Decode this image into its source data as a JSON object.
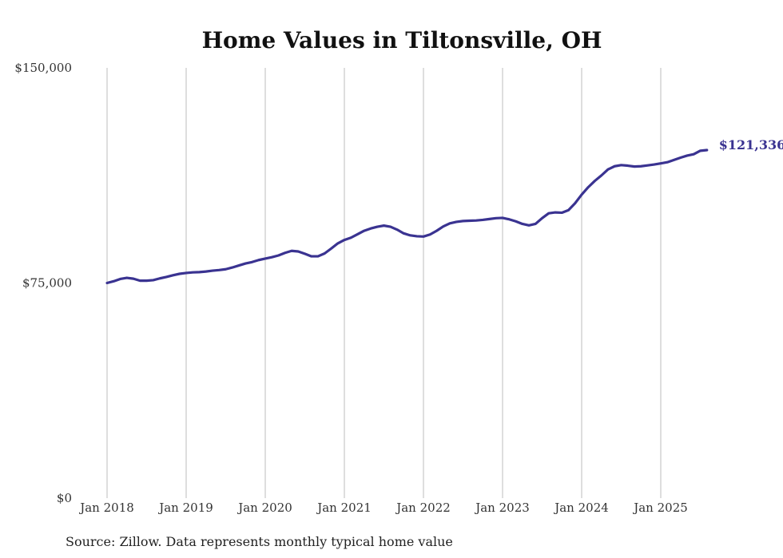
{
  "chart_data": {
    "type": "line",
    "title": "Home Values in Tiltonsville, OH",
    "xlabel": "",
    "ylabel": "",
    "ylim": [
      0,
      150000
    ],
    "y_ticks": [
      {
        "value": 0,
        "label": "$0"
      },
      {
        "value": 75000,
        "label": "$75,000"
      },
      {
        "value": 150000,
        "label": "$150,000"
      }
    ],
    "x_ticks": [
      {
        "month_index": 0,
        "label": "Jan 2018"
      },
      {
        "month_index": 12,
        "label": "Jan 2019"
      },
      {
        "month_index": 24,
        "label": "Jan 2020"
      },
      {
        "month_index": 36,
        "label": "Jan 2021"
      },
      {
        "month_index": 48,
        "label": "Jan 2022"
      },
      {
        "month_index": 60,
        "label": "Jan 2023"
      },
      {
        "month_index": 72,
        "label": "Jan 2024"
      },
      {
        "month_index": 84,
        "label": "Jan 2025"
      }
    ],
    "x_start": "2018-01",
    "x_end": "2025-07",
    "grid": {
      "vertical": true,
      "horizontal": false
    },
    "series": [
      {
        "name": "",
        "color": "#3a3391",
        "end_label": "$121,336",
        "values": [
          75000,
          75600,
          76400,
          76800,
          76500,
          75800,
          75800,
          76000,
          76600,
          77100,
          77700,
          78200,
          78500,
          78700,
          78800,
          79000,
          79300,
          79500,
          79800,
          80400,
          81100,
          81800,
          82300,
          83000,
          83500,
          84000,
          84600,
          85500,
          86200,
          86000,
          85200,
          84300,
          84300,
          85300,
          87000,
          88800,
          90000,
          90800,
          92000,
          93200,
          94000,
          94600,
          95000,
          94600,
          93600,
          92300,
          91600,
          91300,
          91200,
          91900,
          93200,
          94700,
          95800,
          96300,
          96600,
          96700,
          96800,
          97000,
          97300,
          97600,
          97700,
          97200,
          96500,
          95600,
          95100,
          95600,
          97600,
          99300,
          99600,
          99500,
          100400,
          102800,
          105800,
          108400,
          110600,
          112500,
          114600,
          115700,
          116100,
          115900,
          115600,
          115700,
          116000,
          116300,
          116700,
          117100,
          117900,
          118700,
          119400,
          119900,
          121100,
          121336
        ]
      }
    ]
  },
  "footer": {
    "source_text": "Source: Zillow. Data represents monthly typical home value"
  }
}
